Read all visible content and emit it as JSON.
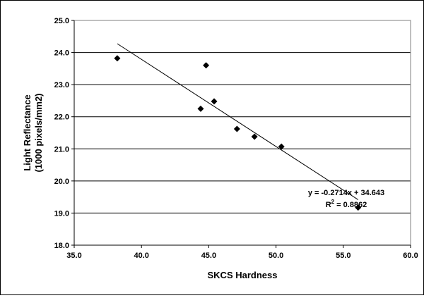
{
  "chart_data": {
    "type": "scatter",
    "xlabel": "SKCS Hardness",
    "ylabel_line1": "Light Reflectance",
    "ylabel_line2": "(1000 pixels/mm2)",
    "xlim": [
      35.0,
      60.0
    ],
    "ylim": [
      18.0,
      25.0
    ],
    "xticks": [
      "35.0",
      "40.0",
      "45.0",
      "50.0",
      "55.0",
      "60.0"
    ],
    "yticks": [
      "18.0",
      "19.0",
      "20.0",
      "21.0",
      "22.0",
      "23.0",
      "24.0",
      "25.0"
    ],
    "grid": "horizontal",
    "points": [
      {
        "x": 38.2,
        "y": 23.82
      },
      {
        "x": 44.4,
        "y": 22.25
      },
      {
        "x": 44.8,
        "y": 23.6
      },
      {
        "x": 45.4,
        "y": 22.48
      },
      {
        "x": 47.1,
        "y": 21.62
      },
      {
        "x": 48.4,
        "y": 21.38
      },
      {
        "x": 50.4,
        "y": 21.07
      },
      {
        "x": 56.1,
        "y": 19.17
      }
    ],
    "trendline": {
      "slope": -0.2714,
      "intercept": 34.643,
      "x_range": [
        38.2,
        56.1
      ],
      "equation": "y = -0.2714x + 34.643",
      "r2_prefix": "R",
      "r2_sup": "2",
      "r2_value": " = 0.8862"
    }
  }
}
